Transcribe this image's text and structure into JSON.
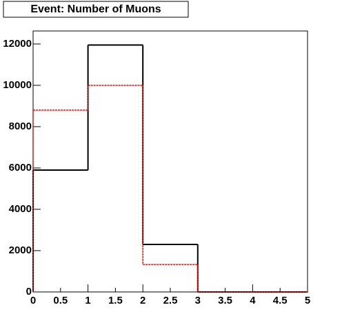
{
  "chart_data": {
    "type": "histogram",
    "title": "Event: Number of Muons",
    "bins": [
      0,
      1,
      2,
      3,
      4,
      5
    ],
    "series": [
      {
        "color": "#000000",
        "style": "solid",
        "values": [
          5900,
          11950,
          2300,
          0,
          0
        ]
      },
      {
        "color": "#ff0000",
        "style": "dashed",
        "values": [
          8800,
          10000,
          1330,
          0,
          0
        ]
      }
    ],
    "xlim": [
      0,
      5
    ],
    "ylim": [
      0,
      12630
    ],
    "xticks": [
      0,
      0.5,
      1,
      1.5,
      2,
      2.5,
      3,
      3.5,
      4,
      4.5,
      5
    ],
    "yticks": [
      0,
      2000,
      4000,
      6000,
      8000,
      10000,
      12000
    ]
  }
}
